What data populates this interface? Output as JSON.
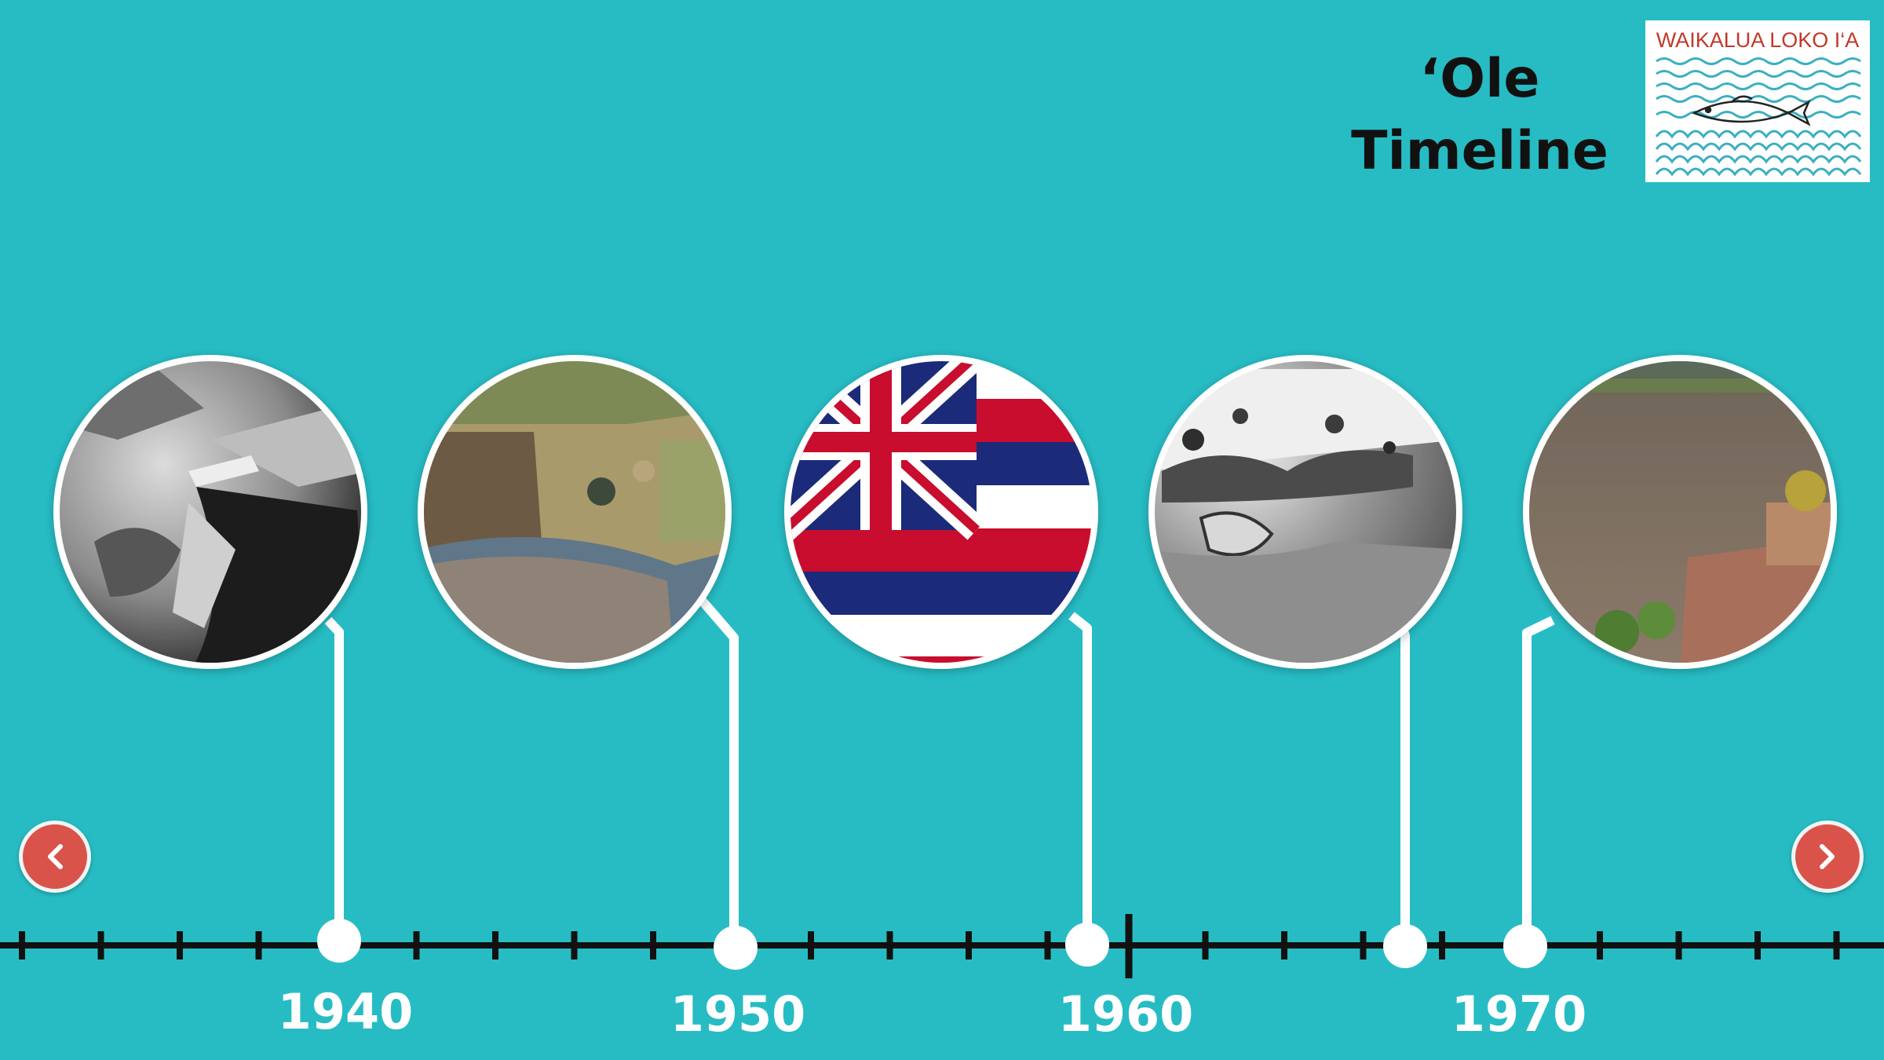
{
  "title": {
    "line1": "‘Ole",
    "line2": "Timeline"
  },
  "logo": {
    "text": "WAIKALUA LOKO I‘A",
    "icon": "fish-waves-logo",
    "color": "#c0392b",
    "wave_color": "#3ab0c0"
  },
  "colors": {
    "background": "#27bcc4",
    "axis": "#111111",
    "connector": "#ffffff",
    "nav": "#d9534a"
  },
  "timeline": {
    "labels": [
      "1940",
      "1950",
      "1960",
      "1970"
    ],
    "events": [
      {
        "id": "event-1",
        "year_marker": 1940,
        "image": "aerial-photo-black-and-white"
      },
      {
        "id": "event-2",
        "year_marker": 1950,
        "image": "aerial-photo-color"
      },
      {
        "id": "event-3",
        "year_marker": 1959,
        "image": "hawaii-flag"
      },
      {
        "id": "event-4",
        "year_marker": 1967,
        "image": "aerial-photo-black-and-white"
      },
      {
        "id": "event-5",
        "year_marker": 1970,
        "image": "fishpond-wall-photo"
      }
    ]
  },
  "nav": {
    "prev_icon": "chevron-left-icon",
    "next_icon": "chevron-right-icon"
  }
}
